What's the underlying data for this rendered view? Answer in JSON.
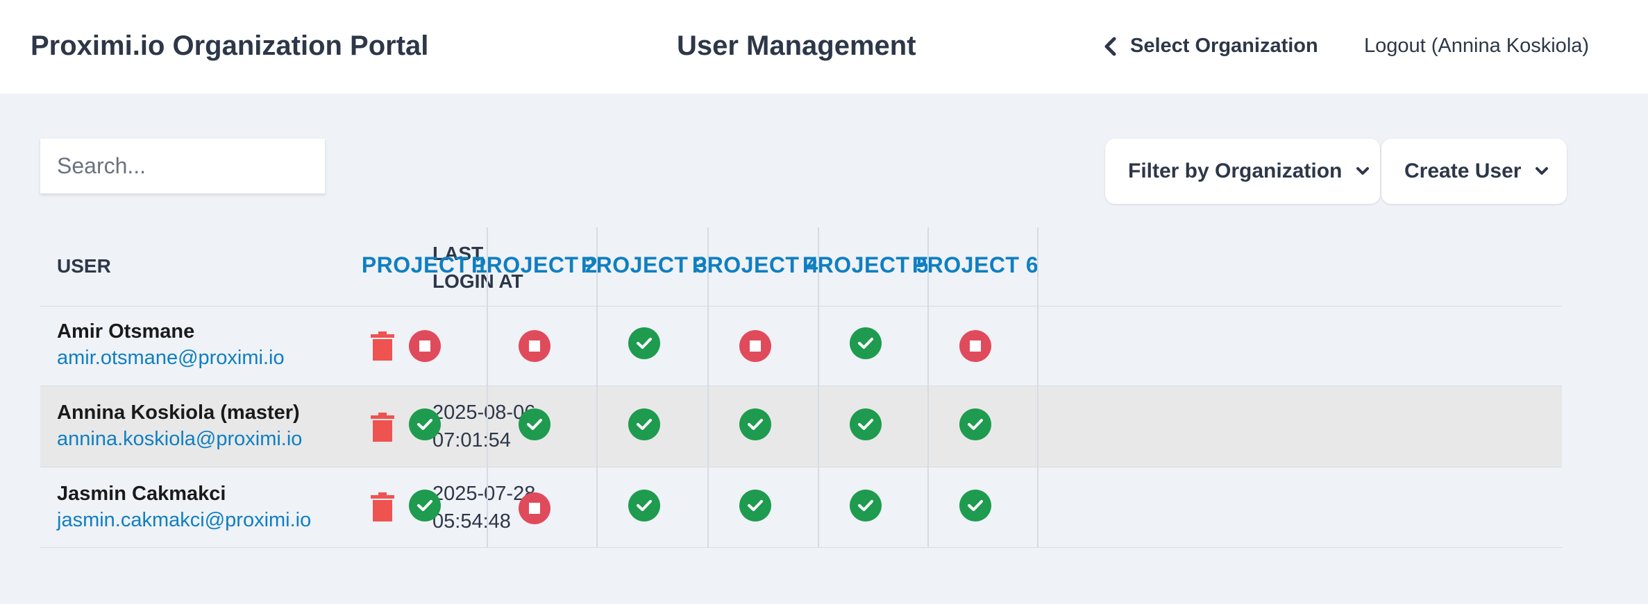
{
  "header": {
    "app_title": "Proximi.io Organization Portal",
    "page_title": "User Management",
    "select_org_label": "Select Organization",
    "logout_label": "Logout (Annina Koskiola)"
  },
  "controls": {
    "search_placeholder": "Search...",
    "filter_label": "Filter by Organization",
    "create_label": "Create User"
  },
  "table": {
    "col_user": "USER",
    "col_login": "LAST LOGIN AT",
    "projects": [
      "PROJECT 1",
      "PROJECT 2",
      "PROJECT 3",
      "PROJECT 4",
      "PROJECT 5",
      "PROJECT 6"
    ],
    "rows": [
      {
        "name": "Amir Otsmane",
        "email": "amir.otsmane@proximi.io",
        "last_login": "-",
        "access": [
          "denied",
          "denied",
          "granted",
          "denied",
          "granted",
          "denied"
        ]
      },
      {
        "name": "Annina Koskiola (master)",
        "email": "annina.koskiola@proximi.io",
        "last_login": "2025-08-06 07:01:54",
        "access": [
          "granted",
          "granted",
          "granted",
          "granted",
          "granted",
          "granted"
        ]
      },
      {
        "name": "Jasmin Cakmakci",
        "email": "jasmin.cakmakci@proximi.io",
        "last_login": "2025-07-28 05:54:48",
        "access": [
          "granted",
          "denied",
          "granted",
          "granted",
          "granted",
          "granted"
        ]
      }
    ]
  },
  "colors": {
    "accent": "#0f7fc1",
    "granted": "#1e9b4e",
    "denied": "#e04b5c",
    "delete": "#ef5350"
  },
  "icons": {
    "select_org": "chevron-left-icon",
    "dropdown": "chevron-down-icon",
    "delete": "trash-icon",
    "granted": "check-circle-icon",
    "denied": "stop-circle-icon"
  }
}
